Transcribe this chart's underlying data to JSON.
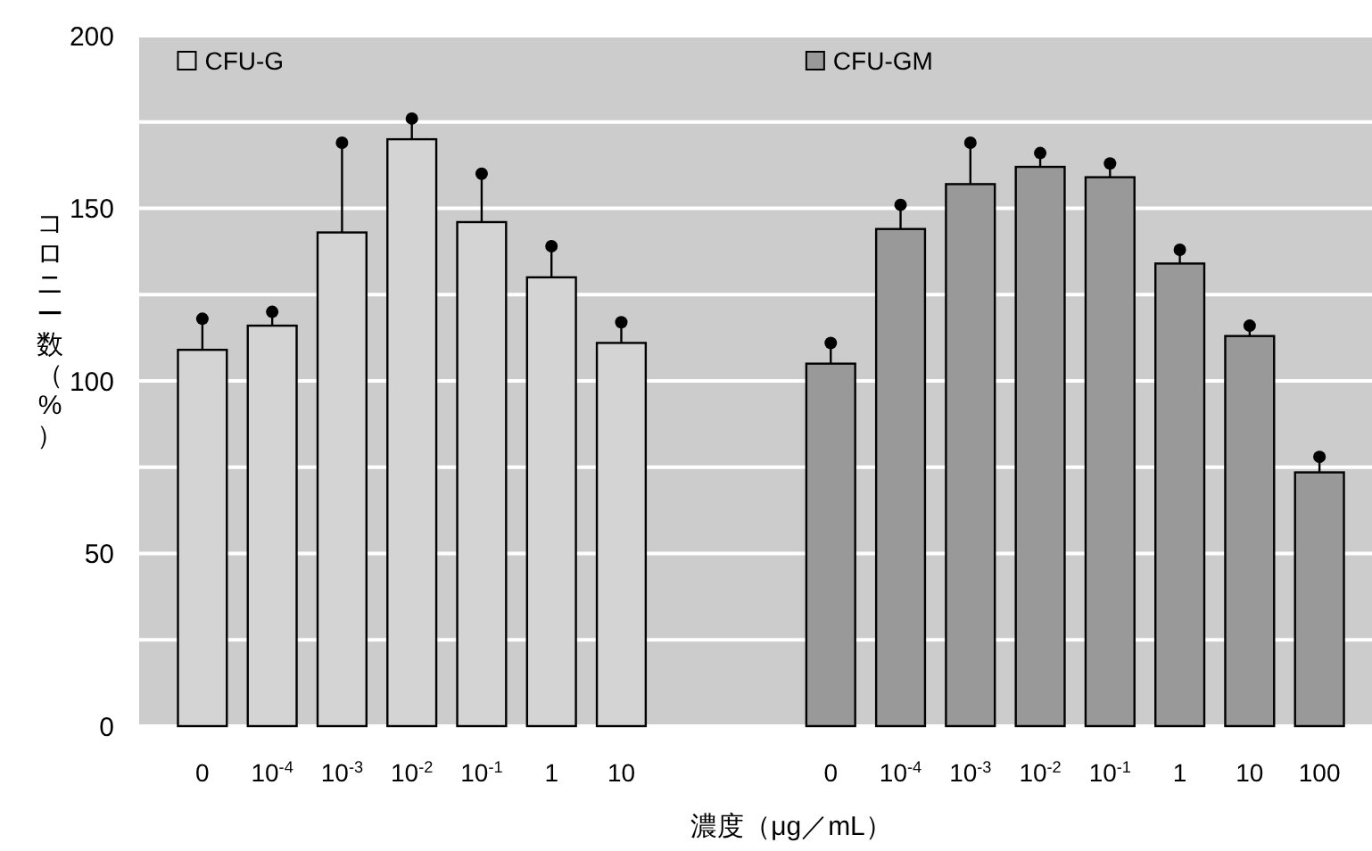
{
  "chart_data": {
    "type": "bar",
    "xlabel": "濃度（μg／mL）",
    "ylabel": "コロニー数（%）",
    "categories": [
      "0",
      "10$^{-4}$",
      "10$^{-3}$",
      "10$^{-2}$",
      "10$^{-1}$",
      "1",
      "10",
      null,
      null,
      "0",
      "10$^{-4}$",
      "10$^{-3}$",
      "10$^{-2}$",
      "10$^{-1}$",
      "1",
      "10",
      "100"
    ],
    "series": [
      {
        "name": "CFU-G",
        "color": "#d4d4d4",
        "values": [
          109,
          116,
          143,
          170,
          146,
          130,
          111,
          null,
          null,
          null,
          null,
          null,
          null,
          null,
          null,
          null,
          null
        ],
        "errors": [
          [
            109,
            118
          ],
          [
            116,
            120
          ],
          [
            143,
            169
          ],
          [
            170,
            176
          ],
          [
            146,
            160
          ],
          [
            130,
            139
          ],
          [
            111,
            117
          ],
          null,
          null,
          null,
          null,
          null,
          null,
          null,
          null,
          null,
          null
        ]
      },
      {
        "name": "CFU-GM",
        "color": "#999999",
        "values": [
          null,
          null,
          null,
          null,
          null,
          null,
          null,
          null,
          null,
          105,
          144,
          157,
          162,
          159,
          134,
          113,
          73.5
        ],
        "errors": [
          null,
          null,
          null,
          null,
          null,
          null,
          null,
          null,
          null,
          [
            105,
            111
          ],
          [
            144,
            151
          ],
          [
            157,
            169
          ],
          [
            162,
            166
          ],
          [
            159,
            163
          ],
          [
            134,
            138
          ],
          [
            113,
            116
          ],
          [
            73.5,
            78
          ]
        ]
      }
    ],
    "ylim": [
      0,
      200
    ],
    "yticks": [
      0,
      {
        "value": 25,
        "label": null
      },
      50,
      {
        "value": 75,
        "label": null
      },
      100,
      {
        "value": 125,
        "label": null
      },
      150,
      {
        "value": 175,
        "label": null
      },
      200
    ],
    "grid": "y",
    "legend": "top",
    "marker": "circle"
  }
}
